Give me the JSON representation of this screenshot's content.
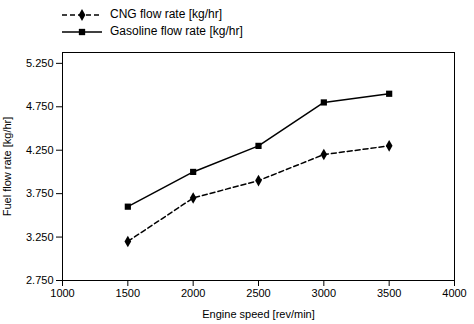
{
  "chart_data": {
    "type": "line",
    "x": [
      1500,
      2000,
      2500,
      3000,
      3500
    ],
    "series": [
      {
        "name": "CNG flow rate [kg/hr]",
        "color": "#000000",
        "marker": "diamond",
        "line_style": "dashed",
        "values": [
          3.2,
          3.7,
          3.9,
          4.2,
          4.3
        ]
      },
      {
        "name": "Gasoline flow rate [kg/hr]",
        "color": "#000000",
        "marker": "square",
        "line_style": "solid",
        "values": [
          3.6,
          4.0,
          4.3,
          4.8,
          4.9
        ]
      }
    ],
    "xlabel": "Engine speed [rev/min]",
    "ylabel": "Fuel flow rate [kg/hr]",
    "xlim": [
      1000,
      4000
    ],
    "ylim": [
      2.75,
      5.375
    ],
    "xticks": [
      1000,
      1500,
      2000,
      2500,
      3000,
      3500,
      4000
    ],
    "yticks": [
      {
        "value": 2.75,
        "label": "2.750"
      },
      {
        "value": 3.25,
        "label": "3.250"
      },
      {
        "value": 3.75,
        "label": "3.750"
      },
      {
        "value": 4.25,
        "label": "4.250"
      },
      {
        "value": 4.75,
        "label": "4.750"
      },
      {
        "value": 5.25,
        "label": "5.250"
      }
    ],
    "grid": false,
    "legend": "top"
  }
}
